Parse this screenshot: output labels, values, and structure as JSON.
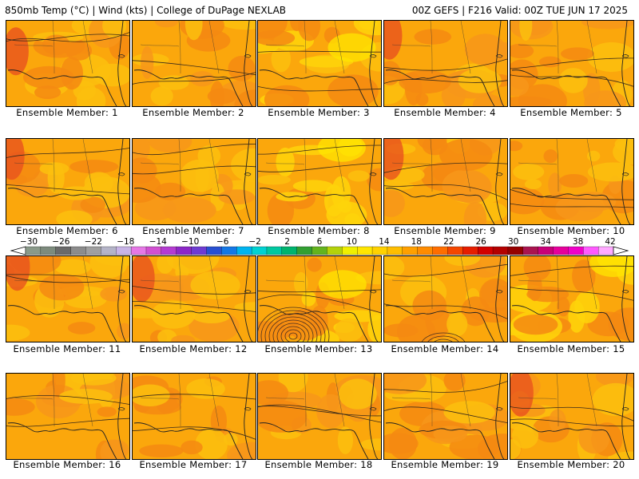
{
  "header": {
    "left": "850mb Temp (°C) | Wind (kts) | College of DuPage NEXLAB",
    "right": "00Z GEFS | F216 Valid: 00Z TUE JUN 17 2025"
  },
  "colorbar": {
    "labels": [
      "−30",
      "−26",
      "−22",
      "−18",
      "−14",
      "−10",
      "−6",
      "−2",
      "2",
      "6",
      "10",
      "14",
      "18",
      "22",
      "26",
      "30",
      "34",
      "38",
      "42"
    ],
    "colors": [
      "#8a9a8a",
      "#7d8b7d",
      "#6a6a6a",
      "#8c8c8c",
      "#a0a0a0",
      "#b4b4c8",
      "#c8b4e6",
      "#e678e6",
      "#d250d2",
      "#b43cd2",
      "#8c28c8",
      "#6e3cd2",
      "#2850d2",
      "#1478e6",
      "#00b4f0",
      "#00d2d2",
      "#00c8a0",
      "#00b46e",
      "#32a032",
      "#64b41e",
      "#b4d20a",
      "#f0f000",
      "#ffe600",
      "#ffd200",
      "#ffbe00",
      "#ffa000",
      "#ff8c00",
      "#ff6e00",
      "#f54600",
      "#e61e00",
      "#d20000",
      "#b40000",
      "#960000",
      "#aa1450",
      "#c80078",
      "#e6009b",
      "#f000c8",
      "#ff5aff",
      "#ffaaff"
    ]
  },
  "members": [
    {
      "label": "Ensemble Member: 1"
    },
    {
      "label": "Ensemble Member: 2"
    },
    {
      "label": "Ensemble Member: 3"
    },
    {
      "label": "Ensemble Member: 4"
    },
    {
      "label": "Ensemble Member: 5"
    },
    {
      "label": "Ensemble Member: 6"
    },
    {
      "label": "Ensemble Member: 7"
    },
    {
      "label": "Ensemble Member: 8"
    },
    {
      "label": "Ensemble Member: 9"
    },
    {
      "label": "Ensemble Member: 10"
    },
    {
      "label": "Ensemble Member: 11"
    },
    {
      "label": "Ensemble Member: 12"
    },
    {
      "label": "Ensemble Member: 13"
    },
    {
      "label": "Ensemble Member: 14"
    },
    {
      "label": "Ensemble Member: 15"
    },
    {
      "label": "Ensemble Member: 16"
    },
    {
      "label": "Ensemble Member: 17"
    },
    {
      "label": "Ensemble Member: 18"
    },
    {
      "label": "Ensemble Member: 19"
    },
    {
      "label": "Ensemble Member: 20"
    }
  ]
}
